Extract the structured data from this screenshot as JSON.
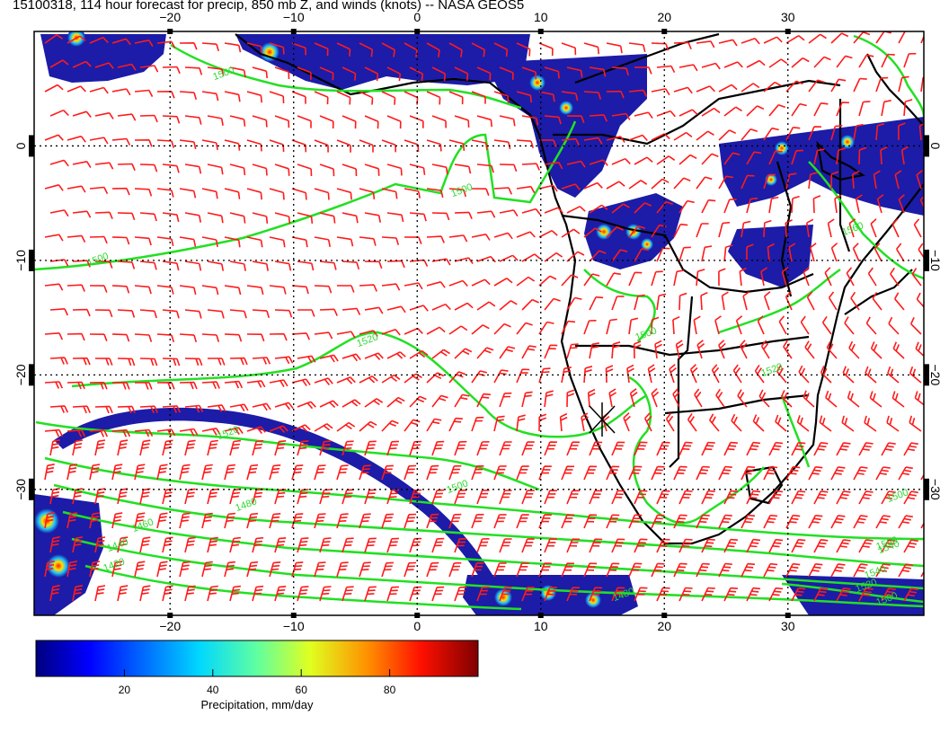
{
  "title": "15100318, 114 hour forecast for precip, 850 mb Z, and winds (knots) -- NASA GEOS5",
  "map": {
    "lon_range": [
      -31,
      41
    ],
    "lat_range": [
      -41,
      10
    ],
    "lon_ticks": [
      -20,
      -10,
      0,
      10,
      20,
      30
    ],
    "lon_tick_labels": [
      "−20",
      "−10",
      "0",
      "10",
      "20",
      "30"
    ],
    "lat_ticks": [
      0,
      -10,
      -20,
      -30
    ],
    "lat_tick_labels": [
      "0",
      "−10",
      "−20",
      "−30"
    ],
    "grid": true,
    "colors": {
      "coastline": "#000000",
      "contour": "#22e022",
      "wind_barb": "#ff1a1a",
      "grid": "#000000"
    }
  },
  "contour_labels": [
    "1500",
    "1500",
    "1500",
    "1520",
    "1520",
    "1520",
    "1480",
    "1460",
    "1440",
    "1420",
    "1500",
    "1500",
    "1540",
    "1560",
    "1560",
    "1540",
    "1520",
    "1500",
    "1480",
    "1500"
  ],
  "colorbar": {
    "label": "Precipitation, mm/day",
    "ticks": [
      20,
      40,
      60,
      80
    ],
    "tick_labels": [
      "20",
      "40",
      "60",
      "80"
    ],
    "range": [
      0,
      100
    ],
    "colors": [
      "#00007f",
      "#0000ff",
      "#0080ff",
      "#00ffff",
      "#80ff80",
      "#ffff00",
      "#ff8000",
      "#ff0000",
      "#7f0000"
    ]
  }
}
